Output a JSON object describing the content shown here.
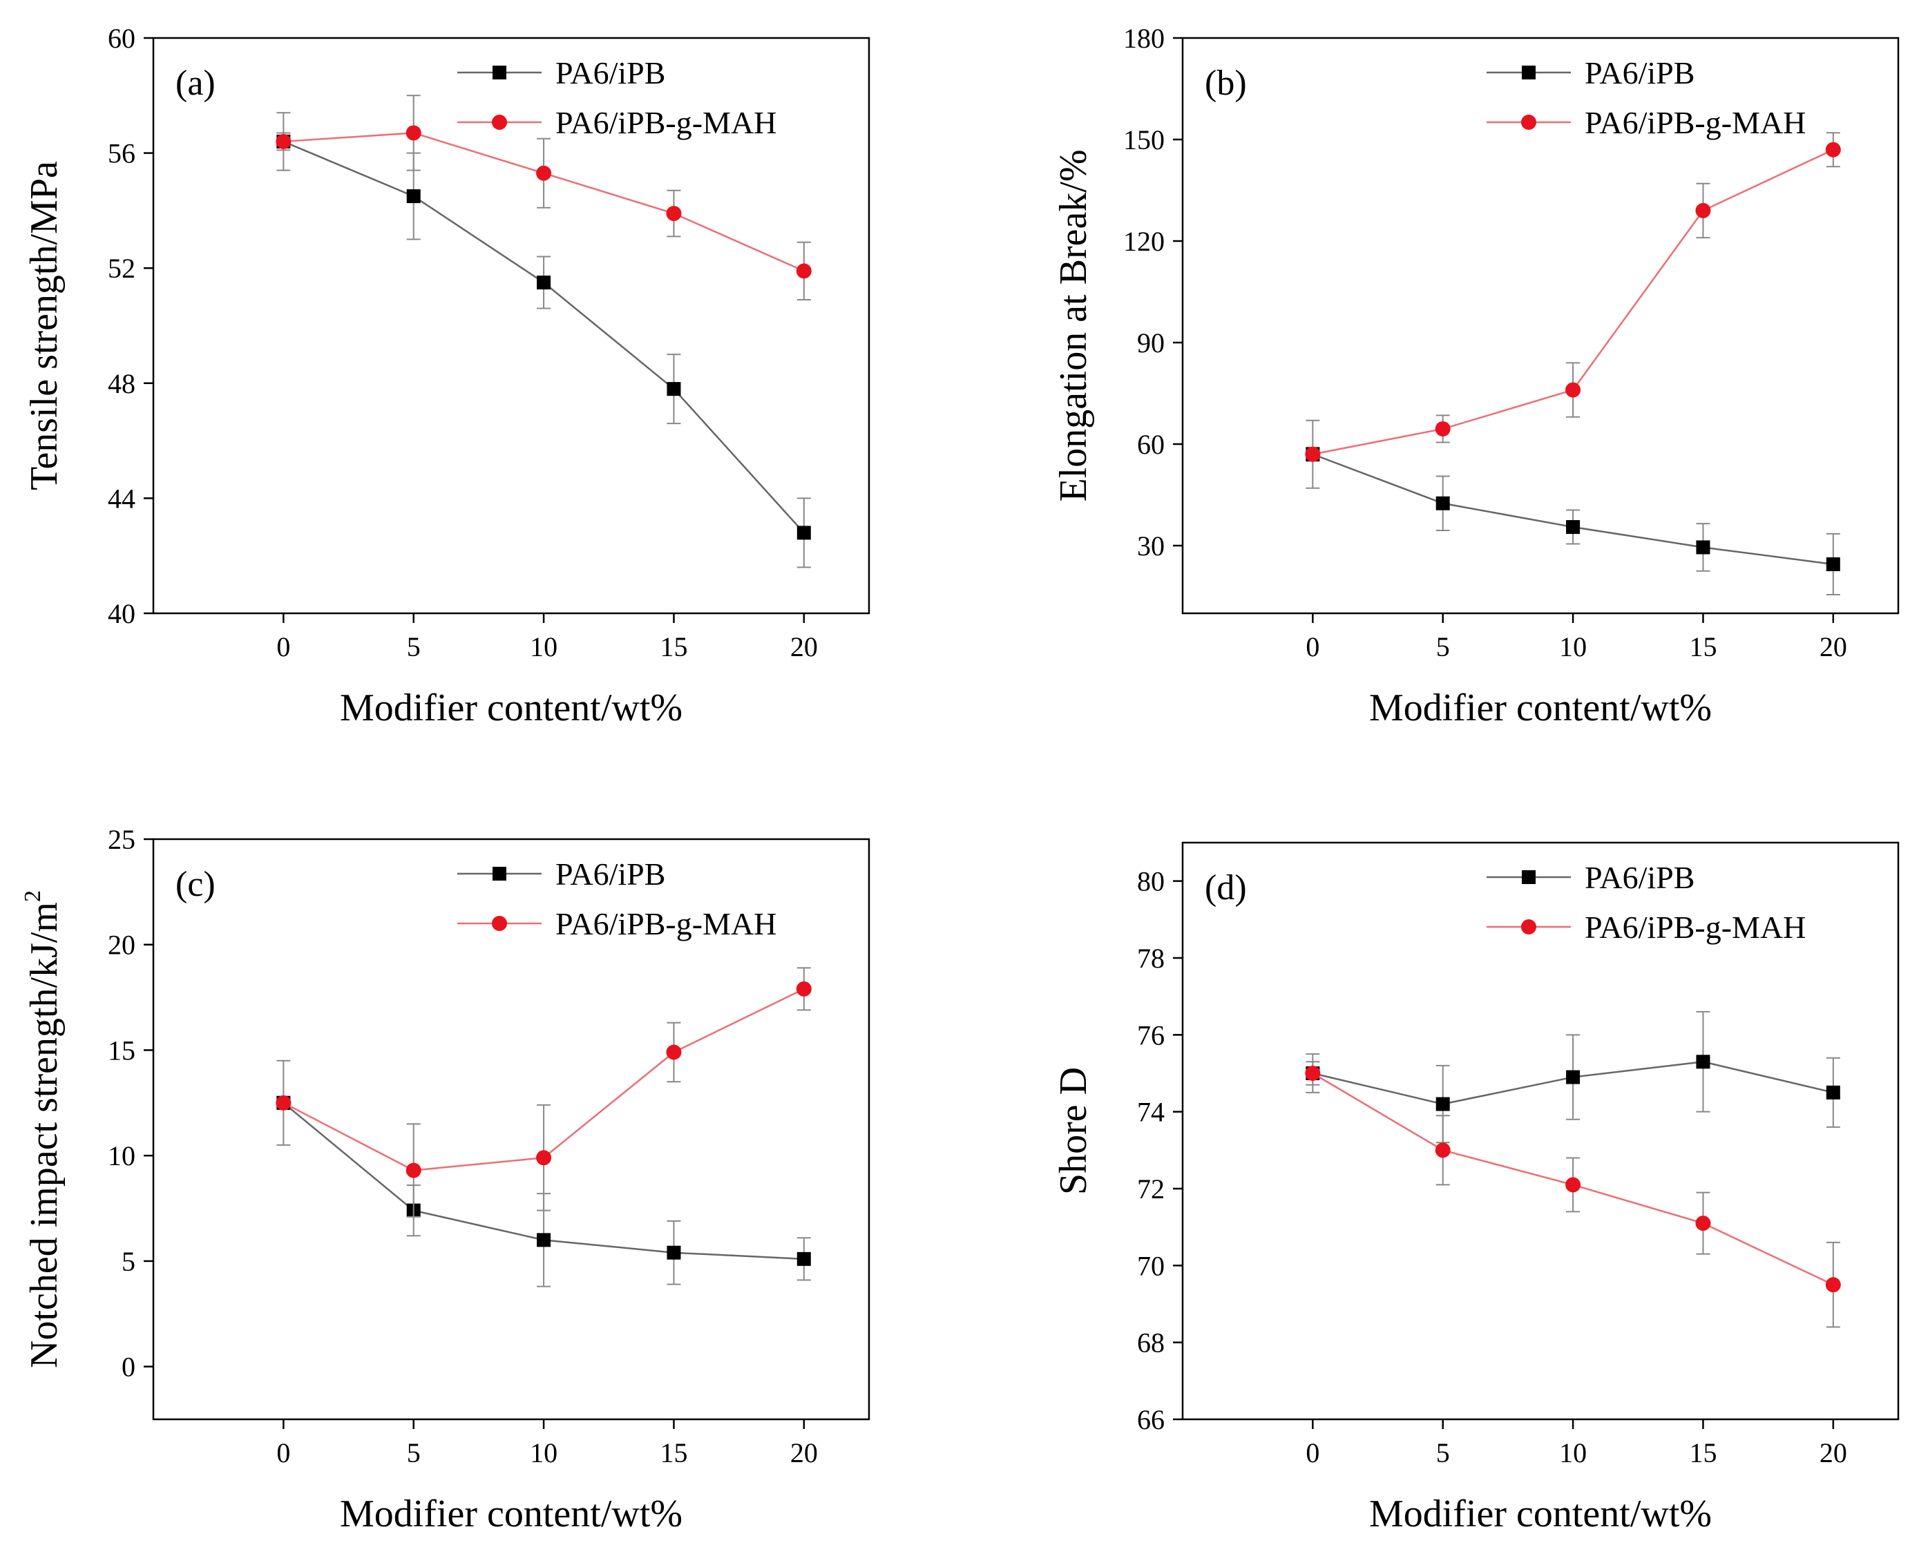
{
  "figure": {
    "colors": {
      "series_1": "#000000",
      "series_2": "#e8121e",
      "line_1": "#666666",
      "line_2": "#ee6d75",
      "errorbar": "#888888"
    }
  },
  "chart_data": [
    {
      "panel": "(a)",
      "type": "line",
      "xlabel": "Modifier content/wt%",
      "ylabel": "Tensile strength/MPa",
      "x": [
        0,
        5,
        10,
        15,
        20
      ],
      "xlim": [
        -5,
        22.5
      ],
      "xticks": [
        0,
        5,
        10,
        15,
        20
      ],
      "ylim": [
        40,
        60
      ],
      "yticks": [
        40,
        44,
        48,
        52,
        56,
        60
      ],
      "legend_position": "top-right",
      "series": [
        {
          "name": "PA6/iPB",
          "marker": "square",
          "values": [
            56.4,
            54.5,
            51.5,
            47.8,
            42.8
          ],
          "errors": [
            0.3,
            1.5,
            0.9,
            1.2,
            1.2
          ]
        },
        {
          "name": "PA6/iPB-g-MAH",
          "marker": "circle",
          "values": [
            56.4,
            56.7,
            55.3,
            53.9,
            51.9
          ],
          "errors": [
            1.0,
            1.3,
            1.2,
            0.8,
            1.0
          ]
        }
      ]
    },
    {
      "panel": "(b)",
      "type": "line",
      "xlabel": "Modifier content/wt%",
      "ylabel": "Elongation at Break/%",
      "x": [
        0,
        5,
        10,
        15,
        20
      ],
      "xlim": [
        -5,
        22.5
      ],
      "xticks": [
        0,
        5,
        10,
        15,
        20
      ],
      "ylim": [
        10,
        180
      ],
      "yticks": [
        30,
        60,
        90,
        120,
        150,
        180
      ],
      "legend_position": "top-right",
      "series": [
        {
          "name": "PA6/iPB",
          "marker": "square",
          "values": [
            57,
            42.5,
            35.5,
            29.5,
            24.5
          ],
          "errors": [
            2,
            8,
            5,
            7,
            9
          ]
        },
        {
          "name": "PA6/iPB-g-MAH",
          "marker": "circle",
          "values": [
            57,
            64.5,
            76,
            129,
            147
          ],
          "errors": [
            10,
            4,
            8,
            8,
            5
          ]
        }
      ]
    },
    {
      "panel": "(c)",
      "type": "line",
      "xlabel": "Modifier content/wt%",
      "ylabel": "Notched impact strength/kJ/m",
      "ylabel_superscript": "2",
      "x": [
        0,
        5,
        10,
        15,
        20
      ],
      "xlim": [
        -5,
        22.5
      ],
      "xticks": [
        0,
        5,
        10,
        15,
        20
      ],
      "ylim": [
        -2.5,
        25
      ],
      "yticks": [
        0,
        5,
        10,
        15,
        20,
        25
      ],
      "legend_position": "top-right",
      "series": [
        {
          "name": "PA6/iPB",
          "marker": "square",
          "values": [
            12.5,
            7.4,
            6.0,
            5.4,
            5.1
          ],
          "errors": [
            0.3,
            1.2,
            2.2,
            1.5,
            1.0
          ]
        },
        {
          "name": "PA6/iPB-g-MAH",
          "marker": "circle",
          "values": [
            12.5,
            9.3,
            9.9,
            14.9,
            17.9
          ],
          "errors": [
            2.0,
            2.2,
            2.5,
            1.4,
            1.0
          ]
        }
      ]
    },
    {
      "panel": "(d)",
      "type": "line",
      "xlabel": "Modifier content/wt%",
      "ylabel": "Shore D",
      "x": [
        0,
        5,
        10,
        15,
        20
      ],
      "xlim": [
        -5,
        22.5
      ],
      "xticks": [
        0,
        5,
        10,
        15,
        20
      ],
      "ylim": [
        66,
        81
      ],
      "yticks": [
        66,
        68,
        70,
        72,
        74,
        76,
        78,
        80
      ],
      "legend_position": "top-right",
      "series": [
        {
          "name": "PA6/iPB",
          "marker": "square",
          "values": [
            75.0,
            74.2,
            74.9,
            75.3,
            74.5
          ],
          "errors": [
            0.3,
            1.0,
            1.1,
            1.3,
            0.9
          ]
        },
        {
          "name": "PA6/iPB-g-MAH",
          "marker": "circle",
          "values": [
            75.0,
            73.0,
            72.1,
            71.1,
            69.5
          ],
          "errors": [
            0.5,
            0.9,
            0.7,
            0.8,
            1.1
          ]
        }
      ]
    }
  ]
}
